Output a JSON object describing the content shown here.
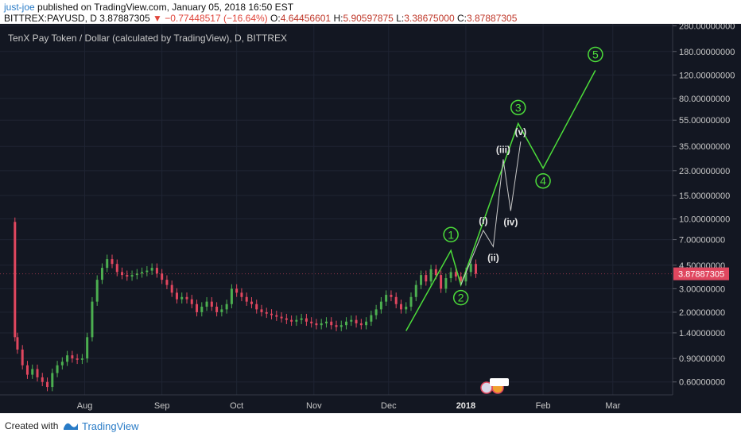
{
  "header": {
    "user": "just-joe",
    "published": "published on TradingView.com, January 05, 2018 16:50 EST",
    "symbol": "BITTREX:PAYUSD, D",
    "last": "3.87887305",
    "change": "−0.77448517 (−16.64%)",
    "o_label": "O:",
    "o_value": "4.64456601",
    "h_label": "H:",
    "h_value": "5.90597875",
    "l_label": "L:",
    "l_value": "3.38675000",
    "c_label": "C:",
    "c_value": "3.87887305"
  },
  "footer": {
    "created_with": "Created with",
    "brand": "TradingView"
  },
  "colors": {
    "background": "#131722",
    "up": "#4caf50",
    "down": "#e0475f",
    "wave": "#4cdd3a",
    "subwave": "#c7c7c7",
    "text": "#c8c8c8",
    "price_tag": "#e0475f"
  },
  "chart_data": {
    "type": "candlestick",
    "title": "TenX Pay Token / Dollar (calculated by TradingView), D, BITTREX",
    "y_scale": "log",
    "ylim": [
      0.48,
      290
    ],
    "y_ticks": [
      "280.00000000",
      "180.00000000",
      "120.00000000",
      "80.00000000",
      "55.00000000",
      "35.00000000",
      "23.00000000",
      "15.00000000",
      "10.00000000",
      "7.00000000",
      "4.50000000",
      "3.00000000",
      "2.00000000",
      "1.40000000",
      "0.90000000",
      "0.60000000"
    ],
    "x_ticks": [
      "Aug",
      "Sep",
      "Oct",
      "Nov",
      "Dec",
      "2018",
      "Feb",
      "Mar"
    ],
    "x_range": [
      "2017-06-28",
      "2018-03-25"
    ],
    "last_price_label": "3.87887305",
    "candles_approx_close": [
      {
        "date": "2017-07-03",
        "value": 9.5
      },
      {
        "date": "2017-07-04",
        "value": 1.3
      },
      {
        "date": "2017-07-05",
        "value": 1.05
      },
      {
        "date": "2017-07-07",
        "value": 0.8
      },
      {
        "date": "2017-07-09",
        "value": 0.68
      },
      {
        "date": "2017-07-11",
        "value": 0.75
      },
      {
        "date": "2017-07-13",
        "value": 0.65
      },
      {
        "date": "2017-07-15",
        "value": 0.6
      },
      {
        "date": "2017-07-17",
        "value": 0.55
      },
      {
        "date": "2017-07-19",
        "value": 0.7
      },
      {
        "date": "2017-07-21",
        "value": 0.8
      },
      {
        "date": "2017-07-23",
        "value": 0.85
      },
      {
        "date": "2017-07-25",
        "value": 0.95
      },
      {
        "date": "2017-07-27",
        "value": 0.9
      },
      {
        "date": "2017-07-29",
        "value": 0.88
      },
      {
        "date": "2017-07-31",
        "value": 0.9
      },
      {
        "date": "2017-08-02",
        "value": 1.3
      },
      {
        "date": "2017-08-04",
        "value": 2.4
      },
      {
        "date": "2017-08-06",
        "value": 3.5
      },
      {
        "date": "2017-08-08",
        "value": 4.3
      },
      {
        "date": "2017-08-10",
        "value": 5.0
      },
      {
        "date": "2017-08-12",
        "value": 4.6
      },
      {
        "date": "2017-08-14",
        "value": 4.0
      },
      {
        "date": "2017-08-16",
        "value": 3.8
      },
      {
        "date": "2017-08-18",
        "value": 3.7
      },
      {
        "date": "2017-08-20",
        "value": 3.8
      },
      {
        "date": "2017-08-22",
        "value": 3.9
      },
      {
        "date": "2017-08-24",
        "value": 4.0
      },
      {
        "date": "2017-08-26",
        "value": 4.1
      },
      {
        "date": "2017-08-28",
        "value": 4.3
      },
      {
        "date": "2017-08-30",
        "value": 3.9
      },
      {
        "date": "2017-09-01",
        "value": 3.5
      },
      {
        "date": "2017-09-03",
        "value": 3.2
      },
      {
        "date": "2017-09-05",
        "value": 2.8
      },
      {
        "date": "2017-09-07",
        "value": 2.5
      },
      {
        "date": "2017-09-09",
        "value": 2.6
      },
      {
        "date": "2017-09-11",
        "value": 2.5
      },
      {
        "date": "2017-09-13",
        "value": 2.3
      },
      {
        "date": "2017-09-15",
        "value": 2.0
      },
      {
        "date": "2017-09-17",
        "value": 2.2
      },
      {
        "date": "2017-09-19",
        "value": 2.4
      },
      {
        "date": "2017-09-21",
        "value": 2.2
      },
      {
        "date": "2017-09-23",
        "value": 2.0
      },
      {
        "date": "2017-09-25",
        "value": 2.1
      },
      {
        "date": "2017-09-27",
        "value": 2.3
      },
      {
        "date": "2017-09-29",
        "value": 3.0
      },
      {
        "date": "2017-10-01",
        "value": 2.8
      },
      {
        "date": "2017-10-03",
        "value": 2.6
      },
      {
        "date": "2017-10-05",
        "value": 2.4
      },
      {
        "date": "2017-10-07",
        "value": 2.3
      },
      {
        "date": "2017-10-09",
        "value": 2.1
      },
      {
        "date": "2017-10-11",
        "value": 2.0
      },
      {
        "date": "2017-10-13",
        "value": 1.95
      },
      {
        "date": "2017-10-15",
        "value": 1.9
      },
      {
        "date": "2017-10-17",
        "value": 1.85
      },
      {
        "date": "2017-10-19",
        "value": 1.8
      },
      {
        "date": "2017-10-21",
        "value": 1.75
      },
      {
        "date": "2017-10-23",
        "value": 1.7
      },
      {
        "date": "2017-10-25",
        "value": 1.75
      },
      {
        "date": "2017-10-27",
        "value": 1.8
      },
      {
        "date": "2017-10-29",
        "value": 1.7
      },
      {
        "date": "2017-10-31",
        "value": 1.65
      },
      {
        "date": "2017-11-02",
        "value": 1.6
      },
      {
        "date": "2017-11-04",
        "value": 1.65
      },
      {
        "date": "2017-11-06",
        "value": 1.7
      },
      {
        "date": "2017-11-08",
        "value": 1.6
      },
      {
        "date": "2017-11-10",
        "value": 1.55
      },
      {
        "date": "2017-11-12",
        "value": 1.6
      },
      {
        "date": "2017-11-14",
        "value": 1.7
      },
      {
        "date": "2017-11-16",
        "value": 1.75
      },
      {
        "date": "2017-11-18",
        "value": 1.65
      },
      {
        "date": "2017-11-20",
        "value": 1.6
      },
      {
        "date": "2017-11-22",
        "value": 1.7
      },
      {
        "date": "2017-11-24",
        "value": 1.9
      },
      {
        "date": "2017-11-26",
        "value": 2.1
      },
      {
        "date": "2017-11-28",
        "value": 2.4
      },
      {
        "date": "2017-11-30",
        "value": 2.7
      },
      {
        "date": "2017-12-02",
        "value": 2.6
      },
      {
        "date": "2017-12-04",
        "value": 2.3
      },
      {
        "date": "2017-12-06",
        "value": 2.1
      },
      {
        "date": "2017-12-08",
        "value": 2.2
      },
      {
        "date": "2017-12-10",
        "value": 2.6
      },
      {
        "date": "2017-12-12",
        "value": 3.2
      },
      {
        "date": "2017-12-14",
        "value": 3.8
      },
      {
        "date": "2017-12-16",
        "value": 3.4
      },
      {
        "date": "2017-12-18",
        "value": 4.2
      },
      {
        "date": "2017-12-20",
        "value": 3.8
      },
      {
        "date": "2017-12-22",
        "value": 3.0
      },
      {
        "date": "2017-12-24",
        "value": 3.6
      },
      {
        "date": "2017-12-26",
        "value": 4.0
      },
      {
        "date": "2017-12-28",
        "value": 3.7
      },
      {
        "date": "2017-12-30",
        "value": 3.4
      },
      {
        "date": "2018-01-01",
        "value": 4.0
      },
      {
        "date": "2018-01-03",
        "value": 4.6
      },
      {
        "date": "2018-01-05",
        "value": 3.88
      }
    ],
    "wave_count": {
      "primary": [
        {
          "label": "1",
          "date": "2017-12-26",
          "value": 5.8
        },
        {
          "label": "2",
          "date": "2017-12-30",
          "value": 3.2
        },
        {
          "label": "3",
          "date": "2018-01-22",
          "value": 52
        },
        {
          "label": "4",
          "date": "2018-02-01",
          "value": 24
        },
        {
          "label": "5",
          "date": "2018-02-22",
          "value": 130
        }
      ],
      "primary_path": [
        {
          "date": "2017-12-08",
          "value": 1.45
        },
        {
          "date": "2017-12-26",
          "value": 5.8
        },
        {
          "date": "2017-12-30",
          "value": 3.2
        },
        {
          "date": "2018-01-22",
          "value": 52
        },
        {
          "date": "2018-02-01",
          "value": 24
        },
        {
          "date": "2018-02-22",
          "value": 130
        }
      ],
      "minor": [
        {
          "label": "(i)",
          "date": "2018-01-08",
          "value": 8.2
        },
        {
          "label": "(ii)",
          "date": "2018-01-12",
          "value": 6.2
        },
        {
          "label": "(iii)",
          "date": "2018-01-16",
          "value": 28
        },
        {
          "label": "(iv)",
          "date": "2018-01-19",
          "value": 11.5
        },
        {
          "label": "(v)",
          "date": "2018-01-23",
          "value": 38
        }
      ],
      "minor_path": [
        {
          "date": "2017-12-30",
          "value": 3.2
        },
        {
          "date": "2018-01-08",
          "value": 8.2
        },
        {
          "date": "2018-01-12",
          "value": 6.2
        },
        {
          "date": "2018-01-16",
          "value": 28
        },
        {
          "date": "2018-01-19",
          "value": 11.5
        },
        {
          "date": "2018-01-23",
          "value": 38
        }
      ]
    }
  }
}
